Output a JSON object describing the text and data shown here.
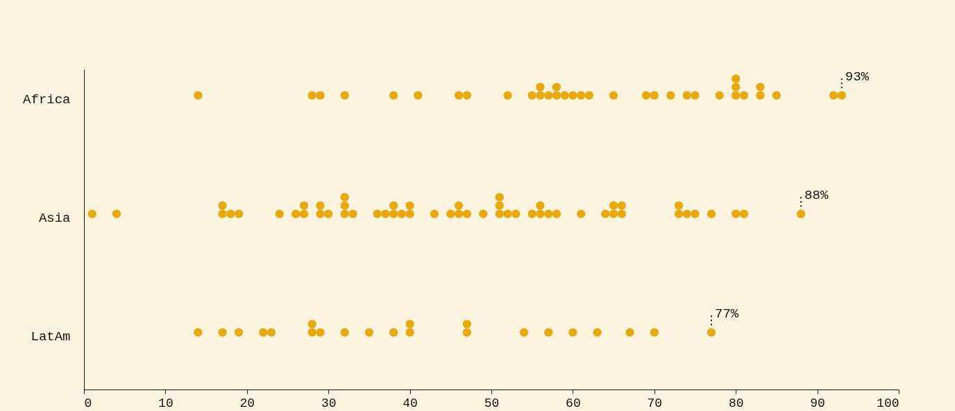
{
  "chart_data": {
    "type": "scatter",
    "orientation": "horizontal",
    "categories": [
      "Africa",
      "Asia",
      "LatAm"
    ],
    "series": [
      {
        "color": "#e9a80c",
        "values": [
          14,
          28,
          29,
          32,
          38,
          41,
          46,
          47,
          52,
          55,
          56,
          56,
          57,
          58,
          58,
          59,
          60,
          61,
          62,
          65,
          69,
          70,
          72,
          74,
          75,
          78,
          80,
          80,
          80,
          81,
          83,
          83,
          85,
          92,
          93
        ],
        "x": [
          "Africa",
          "Africa",
          "Africa",
          "Africa",
          "Africa",
          "Africa",
          "Africa",
          "Africa",
          "Africa",
          "Africa",
          "Africa",
          "Africa",
          "Africa",
          "Africa",
          "Africa",
          "Africa",
          "Africa",
          "Africa",
          "Africa",
          "Africa",
          "Africa",
          "Africa",
          "Africa",
          "Africa",
          "Africa",
          "Africa",
          "Africa",
          "Africa",
          "Africa",
          "Africa",
          "Africa",
          "Africa",
          "Africa",
          "Africa",
          "Africa"
        ]
      },
      {
        "color": "#e9a80c",
        "values": [
          1,
          4,
          17,
          17,
          18,
          19,
          24,
          26,
          27,
          27,
          29,
          29,
          30,
          32,
          32,
          32,
          33,
          36,
          37,
          38,
          38,
          39,
          40,
          40,
          43,
          45,
          46,
          46,
          47,
          49,
          51,
          51,
          51,
          52,
          53,
          55,
          56,
          56,
          57,
          58,
          61,
          64,
          65,
          65,
          66,
          66,
          73,
          73,
          74,
          75,
          77,
          80,
          81,
          88
        ],
        "x": [
          "Asia",
          "Asia",
          "Asia",
          "Asia",
          "Asia",
          "Asia",
          "Asia",
          "Asia",
          "Asia",
          "Asia",
          "Asia",
          "Asia",
          "Asia",
          "Asia",
          "Asia",
          "Asia",
          "Asia",
          "Asia",
          "Asia",
          "Asia",
          "Asia",
          "Asia",
          "Asia",
          "Asia",
          "Asia",
          "Asia",
          "Asia",
          "Asia",
          "Asia",
          "Asia",
          "Asia",
          "Asia",
          "Asia",
          "Asia",
          "Asia",
          "Asia",
          "Asia",
          "Asia",
          "Asia",
          "Asia",
          "Asia",
          "Asia",
          "Asia",
          "Asia",
          "Asia",
          "Asia",
          "Asia",
          "Asia",
          "Asia",
          "Asia",
          "Asia",
          "Asia",
          "Asia",
          "Asia"
        ]
      },
      {
        "color": "#e9a80c",
        "values": [
          14,
          17,
          19,
          22,
          23,
          28,
          28,
          29,
          32,
          35,
          38,
          40,
          40,
          47,
          47,
          54,
          57,
          60,
          63,
          67,
          70,
          77
        ],
        "x": [
          "LatAm",
          "LatAm",
          "LatAm",
          "LatAm",
          "LatAm",
          "LatAm",
          "LatAm",
          "LatAm",
          "LatAm",
          "LatAm",
          "LatAm",
          "LatAm",
          "LatAm",
          "LatAm",
          "LatAm",
          "LatAm",
          "LatAm",
          "LatAm",
          "LatAm",
          "LatAm",
          "LatAm",
          "LatAm"
        ]
      }
    ],
    "xlim": [
      0,
      100
    ],
    "xticks": [
      0,
      10,
      20,
      30,
      40,
      50,
      60,
      70,
      80,
      90,
      100
    ],
    "grid": false,
    "marker": "circle",
    "annotations": [
      {
        "text": "93%",
        "x": 93,
        "y": "Africa"
      },
      {
        "text": "88%",
        "x": 88,
        "y": "Asia"
      },
      {
        "text": "77%",
        "x": 77,
        "y": "LatAm"
      }
    ]
  }
}
